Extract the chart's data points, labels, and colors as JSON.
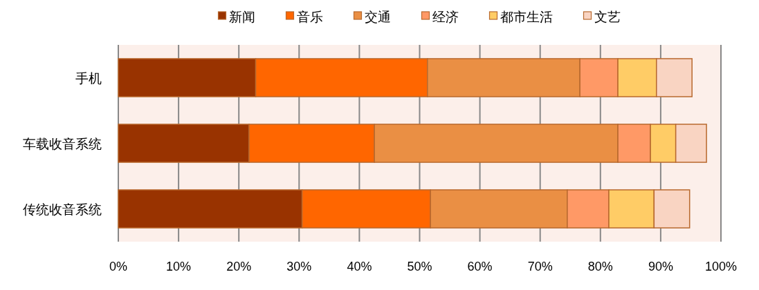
{
  "chart_data": {
    "type": "bar",
    "orientation": "horizontal",
    "stacked": true,
    "categories": [
      "手机",
      "车载收音系统",
      "传统收音系统"
    ],
    "series": [
      {
        "name": "新闻",
        "color": "#993300",
        "values": [
          22.8,
          21.7,
          30.5
        ]
      },
      {
        "name": "音乐",
        "color": "#ff6600",
        "values": [
          28.5,
          20.8,
          21.3
        ]
      },
      {
        "name": "交通",
        "color": "#ea8f44",
        "values": [
          25.3,
          40.4,
          22.7
        ]
      },
      {
        "name": "经济",
        "color": "#ff9966",
        "values": [
          6.3,
          5.4,
          6.9
        ]
      },
      {
        "name": "都市生活",
        "color": "#ffcc66",
        "values": [
          6.4,
          4.2,
          7.5
        ]
      },
      {
        "name": "文艺",
        "color": "#f9d4c2",
        "values": [
          5.9,
          5.1,
          5.9
        ]
      }
    ],
    "xlim": [
      0,
      100
    ],
    "xticks": [
      {
        "value": 0,
        "label": "0%"
      },
      {
        "value": 10,
        "label": "10%"
      },
      {
        "value": 20,
        "label": "20%"
      },
      {
        "value": 30,
        "label": "30%"
      },
      {
        "value": 40,
        "label": "40%"
      },
      {
        "value": 50,
        "label": "50%"
      },
      {
        "value": 60,
        "label": "60%"
      },
      {
        "value": 70,
        "label": "70%"
      },
      {
        "value": 80,
        "label": "80%"
      },
      {
        "value": 90,
        "label": "90%"
      },
      {
        "value": 100,
        "label": "100%"
      }
    ],
    "grid": "x",
    "legend": "top"
  }
}
